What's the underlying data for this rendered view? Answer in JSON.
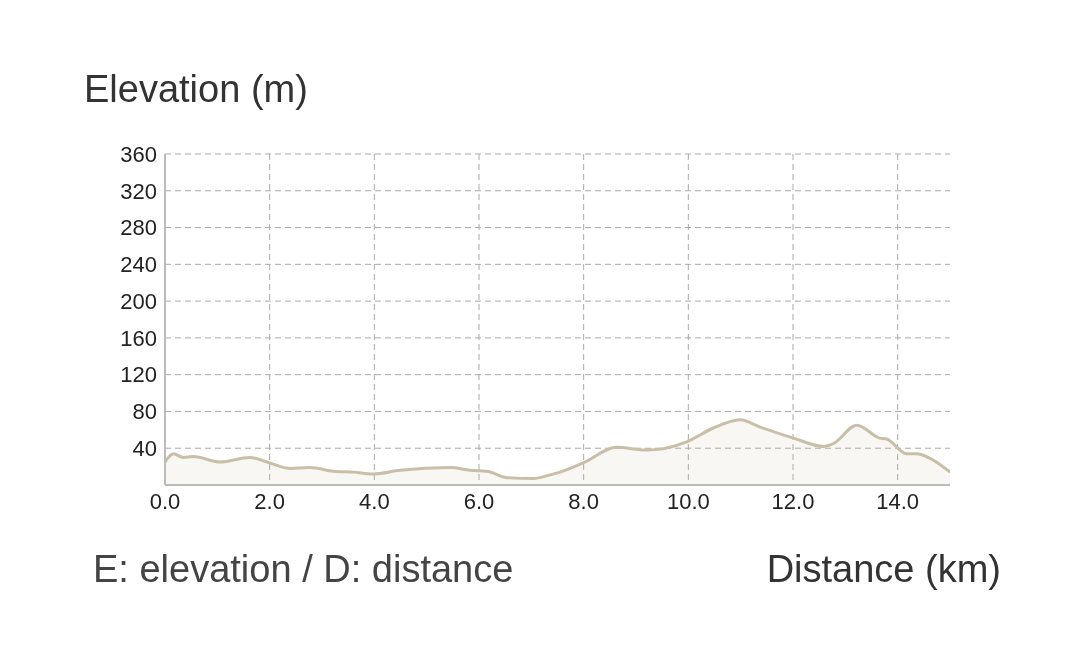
{
  "chart_data": {
    "type": "area",
    "ylabel": "Elevation (m)",
    "xlabel": "Distance (km)",
    "annotations": [
      "E: elevation / D: distance"
    ],
    "x": [
      0,
      0.16,
      0.35,
      0.54,
      1.05,
      1.62,
      2.0,
      2.39,
      2.77,
      3.22,
      3.6,
      3.98,
      4.49,
      5.45,
      5.83,
      6.15,
      6.53,
      7.04,
      7.36,
      7.55,
      7.99,
      8.63,
      9.2,
      9.97,
      10.48,
      10.99,
      11.37,
      12.01,
      12.58,
      12.77,
      13.22,
      13.66,
      13.79,
      14.17,
      14.36,
      14.62,
      15.0
    ],
    "series": [
      {
        "color": "#c9bea8",
        "values": [
          25,
          34,
          30,
          31,
          25,
          30,
          24,
          18,
          19,
          15,
          14,
          12,
          16,
          19,
          16,
          15,
          8,
          7,
          11,
          14,
          24,
          41,
          38,
          47,
          62,
          71,
          63,
          51,
          42,
          45,
          65,
          51,
          50,
          34,
          34,
          29,
          14
        ]
      }
    ],
    "xlim": [
      0,
      15
    ],
    "xticks": [
      {
        "value": 0,
        "label": "0.0"
      },
      {
        "value": 2,
        "label": "2.0"
      },
      {
        "value": 4,
        "label": "4.0"
      },
      {
        "value": 6,
        "label": "6.0"
      },
      {
        "value": 8,
        "label": "8.0"
      },
      {
        "value": 10,
        "label": "10.0"
      },
      {
        "value": 12,
        "label": "12.0"
      },
      {
        "value": 14,
        "label": "14.0"
      }
    ],
    "ylim": [
      0,
      360
    ],
    "yticks": [
      40,
      80,
      120,
      160,
      200,
      240,
      280,
      320,
      360
    ],
    "grid": true
  }
}
